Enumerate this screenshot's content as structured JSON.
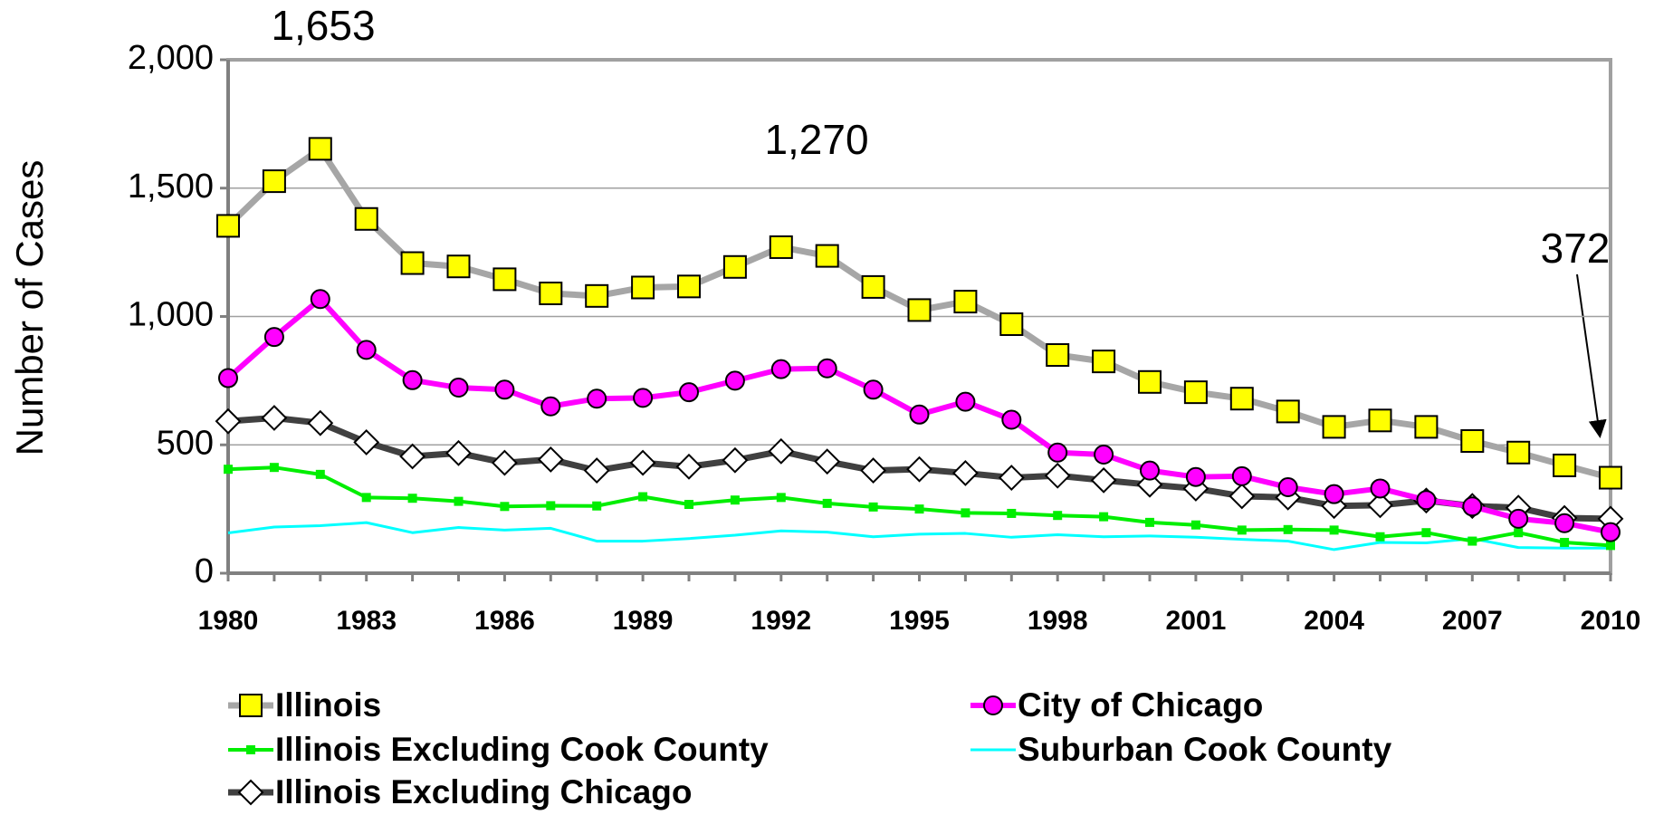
{
  "chart_data": {
    "type": "line",
    "y_label": "Number of Cases",
    "x": [
      1980,
      1981,
      1982,
      1983,
      1984,
      1985,
      1986,
      1987,
      1988,
      1989,
      1990,
      1991,
      1992,
      1993,
      1994,
      1995,
      1996,
      1997,
      1998,
      1999,
      2000,
      2001,
      2002,
      2003,
      2004,
      2005,
      2006,
      2007,
      2008,
      2009,
      2010
    ],
    "xlim": [
      1980,
      2010
    ],
    "xticks": [
      1980,
      1983,
      1986,
      1989,
      1992,
      1995,
      1998,
      2001,
      2004,
      2007,
      2010
    ],
    "ylim": [
      0,
      2000
    ],
    "yticks": [
      0,
      500,
      {
        "value": 1000,
        "label": "1,000"
      },
      {
        "value": 1500,
        "label": "1,500"
      },
      {
        "value": 2000,
        "label": "2,000"
      }
    ],
    "grid": true,
    "series": [
      {
        "name": "Illinois",
        "color": "#a6a6a6",
        "marker": "square",
        "marker_color": "#ffff00",
        "values": [
          1353,
          1527,
          1653,
          1380,
          1208,
          1195,
          1145,
          1090,
          1080,
          1113,
          1117,
          1193,
          1270,
          1236,
          1115,
          1025,
          1058,
          970,
          850,
          825,
          745,
          705,
          680,
          630,
          570,
          595,
          570,
          515,
          470,
          420,
          372
        ]
      },
      {
        "name": "City of Chicago",
        "color": "#ff00ff",
        "marker": "circle",
        "marker_color": "#ff00ff",
        "values": [
          760,
          920,
          1068,
          870,
          752,
          723,
          715,
          650,
          680,
          683,
          705,
          750,
          795,
          798,
          715,
          618,
          668,
          598,
          470,
          462,
          400,
          375,
          378,
          335,
          308,
          330,
          285,
          260,
          212,
          195,
          160
        ]
      },
      {
        "name": "Illinois Excluding Cook County",
        "color": "#00ee00",
        "marker": "smallsquare",
        "marker_color": "#00ee00",
        "values": [
          405,
          412,
          385,
          295,
          292,
          280,
          260,
          263,
          262,
          298,
          268,
          285,
          295,
          272,
          258,
          250,
          235,
          233,
          225,
          220,
          198,
          188,
          168,
          170,
          168,
          142,
          158,
          125,
          158,
          120,
          108
        ]
      },
      {
        "name": "Suburban Cook County",
        "color": "#00ffff",
        "marker": "none",
        "marker_color": "#00ffff",
        "values": [
          157,
          180,
          185,
          197,
          158,
          178,
          168,
          175,
          125,
          125,
          135,
          148,
          165,
          160,
          142,
          152,
          155,
          140,
          150,
          142,
          145,
          140,
          132,
          125,
          92,
          120,
          118,
          135,
          100,
          98,
          98
        ]
      },
      {
        "name": "Illinois Excluding Chicago",
        "color": "#404040",
        "marker": "diamond",
        "marker_color": "#ffffff",
        "values": [
          592,
          605,
          585,
          510,
          455,
          468,
          430,
          443,
          400,
          430,
          415,
          440,
          475,
          435,
          400,
          405,
          390,
          372,
          380,
          362,
          345,
          330,
          300,
          295,
          262,
          265,
          283,
          262,
          255,
          215,
          212
        ]
      }
    ],
    "annotations": [
      "1,653",
      "1,270",
      "372"
    ]
  }
}
